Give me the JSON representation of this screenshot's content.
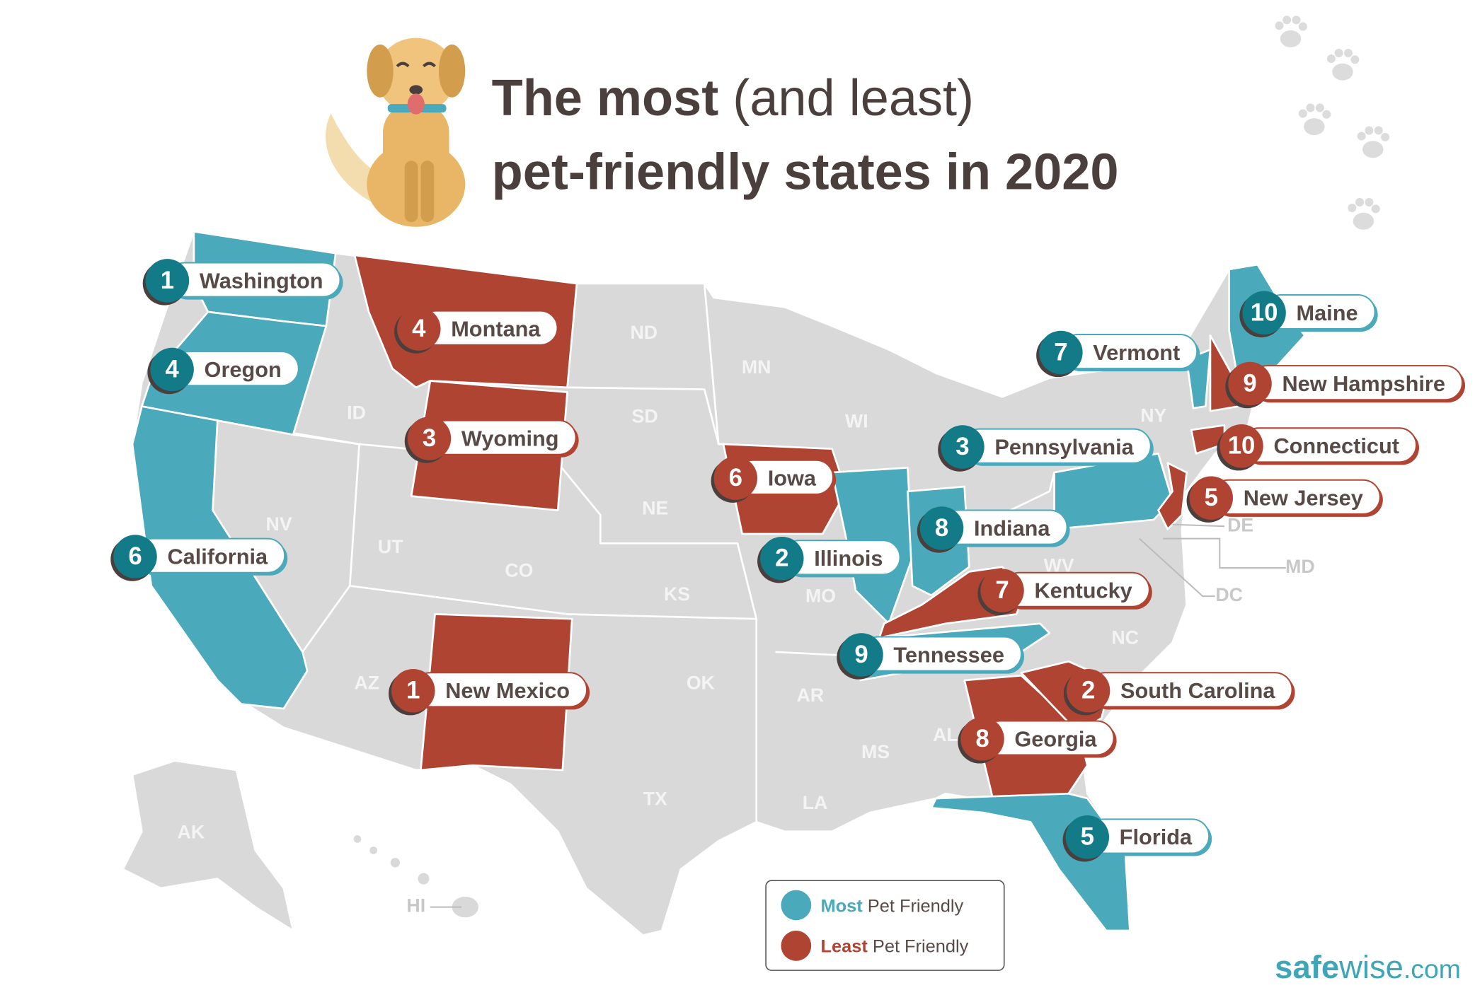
{
  "title": {
    "bold_start": "The most",
    "light": "(and least)",
    "line2": "pet-friendly states in 2020"
  },
  "state_abbreviations": [
    "ND",
    "MN",
    "SD",
    "ID",
    "WI",
    "NY",
    "NE",
    "NV",
    "UT",
    "CO",
    "KS",
    "MO",
    "WV",
    "DE",
    "MD",
    "DC",
    "NC",
    "OK",
    "AZ",
    "AR",
    "AL",
    "MS",
    "TX",
    "LA",
    "AK",
    "HI"
  ],
  "most_pet_friendly": [
    {
      "rank": 1,
      "state": "Washington"
    },
    {
      "rank": 2,
      "state": "Illinois"
    },
    {
      "rank": 3,
      "state": "Pennsylvania"
    },
    {
      "rank": 4,
      "state": "Oregon"
    },
    {
      "rank": 5,
      "state": "Florida"
    },
    {
      "rank": 6,
      "state": "California"
    },
    {
      "rank": 7,
      "state": "Vermont"
    },
    {
      "rank": 8,
      "state": "Indiana"
    },
    {
      "rank": 9,
      "state": "Tennessee"
    },
    {
      "rank": 10,
      "state": "Maine"
    }
  ],
  "least_pet_friendly": [
    {
      "rank": 1,
      "state": "New Mexico"
    },
    {
      "rank": 2,
      "state": "South Carolina"
    },
    {
      "rank": 3,
      "state": "Wyoming"
    },
    {
      "rank": 4,
      "state": "Montana"
    },
    {
      "rank": 5,
      "state": "New Jersey"
    },
    {
      "rank": 6,
      "state": "Iowa"
    },
    {
      "rank": 7,
      "state": "Kentucky"
    },
    {
      "rank": 8,
      "state": "Georgia"
    },
    {
      "rank": 9,
      "state": "New Hampshire"
    },
    {
      "rank": 10,
      "state": "Connecticut"
    }
  ],
  "legend": {
    "most": "Most",
    "least": "Least",
    "suffix": "Pet Friendly"
  },
  "logo": {
    "safe": "safe",
    "wise": "wise",
    "domain": ".com"
  }
}
